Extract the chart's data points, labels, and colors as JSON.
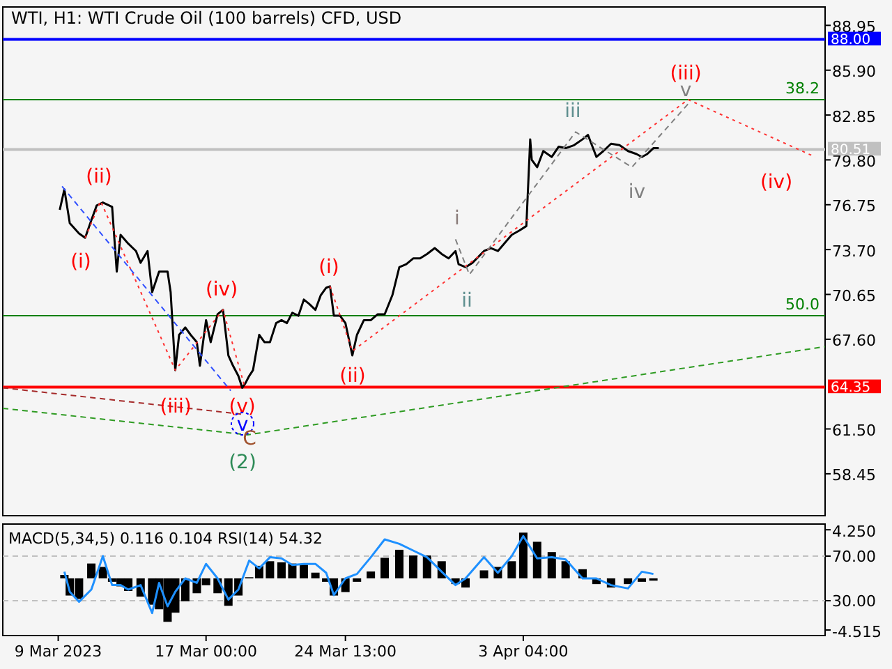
{
  "chart_data": [
    {
      "type": "line",
      "title": "WTI, H1:  WTI Crude Oil (100 barrels) CFD, USD",
      "tick_labels": "y",
      "xlim": [
        "2023-03-06T00:00",
        "2023-04-19T12:00"
      ],
      "ylim": [
        55.6,
        90.2
      ],
      "yticks": [
        88.95,
        {
          "value": 85.9,
          "label": "85.90"
        },
        82.85,
        {
          "value": 79.8,
          "label": "79.80"
        },
        76.75,
        {
          "value": 73.7,
          "label": "73.70"
        },
        70.65,
        {
          "value": 67.6,
          "label": "67.60"
        },
        {
          "value": 61.5,
          "label": "61.50"
        },
        58.45
      ],
      "series": [
        {
          "color": "#000000",
          "x": [
            "2023-03-09T02:00",
            "2023-03-09T08:00",
            "2023-03-09T15:00",
            "2023-03-10T03:00",
            "2023-03-10T11:00",
            "2023-03-10T19:00",
            "2023-03-11T02:00",
            "2023-03-11T10:00",
            "2023-03-11T22:00",
            "2023-03-12T04:00",
            "2023-03-12T09:00",
            "2023-03-12T19:00",
            "2023-03-13T05:00",
            "2023-03-13T11:00",
            "2023-03-13T20:00",
            "2023-03-14T02:00",
            "2023-03-14T11:00",
            "2023-03-14T22:00",
            "2023-03-15T02:00",
            "2023-03-15T08:00",
            "2023-03-15T13:00",
            "2023-03-15T21:00",
            "2023-03-16T04:00",
            "2023-03-16T12:00",
            "2023-03-16T16:00",
            "2023-03-17T00:00",
            "2023-03-17T06:00",
            "2023-03-17T15:00",
            "2023-03-17T22:00",
            "2023-03-18T05:00",
            "2023-03-18T11:00",
            "2023-03-18T18:00",
            "2023-03-18T23:00",
            "2023-03-19T03:00",
            "2023-03-19T08:00",
            "2023-03-19T13:00",
            "2023-03-19T21:00",
            "2023-03-20T04:00",
            "2023-03-20T11:00",
            "2023-03-20T19:00",
            "2023-03-21T02:00",
            "2023-03-21T09:00",
            "2023-03-21T16:00",
            "2023-03-22T00:00",
            "2023-03-22T07:00",
            "2023-03-22T14:00",
            "2023-03-22T22:00",
            "2023-03-23T05:00",
            "2023-03-23T12:00",
            "2023-03-23T17:00",
            "2023-03-23T22:00",
            "2023-03-24T06:00",
            "2023-03-24T13:00",
            "2023-03-24T22:00",
            "2023-03-25T04:00",
            "2023-03-25T13:00",
            "2023-03-25T22:00",
            "2023-03-26T07:00",
            "2023-03-26T16:00",
            "2023-03-27T02:00",
            "2023-03-27T11:00",
            "2023-03-27T20:00",
            "2023-03-28T05:00",
            "2023-03-28T14:00",
            "2023-03-28T23:00",
            "2023-03-29T09:00",
            "2023-03-29T18:00",
            "2023-03-30T03:00",
            "2023-03-30T12:00",
            "2023-03-30T16:00",
            "2023-03-31T01:00",
            "2023-03-31T10:00",
            "2023-04-01T01:00",
            "2023-04-01T10:00",
            "2023-04-01T19:00",
            "2023-04-02T13:00",
            "2023-04-02T23:00",
            "2023-04-03T08:00",
            "2023-04-03T13:00",
            "2023-04-03T15:00",
            "2023-04-03T22:00",
            "2023-04-04T06:00",
            "2023-04-04T17:00",
            "2023-04-05T02:00",
            "2023-04-05T11:00",
            "2023-04-05T22:00",
            "2023-04-06T09:00",
            "2023-04-06T16:00",
            "2023-04-07T03:00",
            "2023-04-07T12:00",
            "2023-04-07T22:00",
            "2023-04-08T09:00",
            "2023-04-08T20:00",
            "2023-04-09T07:00",
            "2023-04-09T14:00",
            "2023-04-09T21:00",
            "2023-04-10T05:00",
            "2023-04-10T12:00"
          ],
          "values": [
            76.4,
            77.8,
            75.5,
            74.8,
            74.5,
            75.7,
            76.7,
            76.9,
            76.6,
            72.2,
            74.7,
            74.1,
            73.6,
            72.8,
            73.6,
            70.8,
            72.2,
            72.2,
            70.8,
            65.5,
            67.9,
            68.4,
            67.9,
            67.4,
            65.8,
            68.9,
            67.4,
            69.3,
            69.6,
            66.5,
            65.8,
            65.1,
            64.3,
            64.6,
            65.1,
            65.5,
            67.9,
            67.4,
            67.4,
            68.7,
            68.9,
            68.7,
            69.4,
            69.2,
            70.3,
            70.0,
            69.6,
            70.6,
            71.1,
            71.2,
            69.2,
            69.2,
            68.7,
            66.5,
            67.9,
            68.9,
            68.9,
            69.3,
            69.3,
            70.6,
            72.5,
            72.7,
            73.1,
            73.1,
            73.4,
            73.8,
            73.4,
            73.1,
            73.6,
            72.7,
            72.5,
            72.8,
            73.6,
            73.8,
            73.6,
            74.7,
            75.0,
            75.3,
            81.2,
            79.8,
            79.3,
            80.4,
            80.0,
            80.7,
            80.6,
            80.8,
            81.2,
            81.5,
            80.0,
            80.4,
            80.9,
            80.8,
            80.4,
            80.2,
            80.0,
            80.2,
            80.6,
            80.6
          ]
        },
        {
          "color": "#ff3030",
          "line_style": "dotted",
          "x": [
            "2023-03-10T11:00",
            "2023-03-11T07:00",
            "2023-03-15T08:00",
            "2023-03-17T22:00",
            "2023-03-19T02:00"
          ],
          "values": [
            74.5,
            77.0,
            65.5,
            69.6,
            64.4
          ]
        },
        {
          "color": "#ff3030",
          "line_style": "dotted",
          "x": [
            "2023-03-23T17:00",
            "2023-03-24T22:00",
            "2023-04-12T02:00",
            "2023-04-18T23:00"
          ],
          "values": [
            71.2,
            66.8,
            83.9,
            80.0
          ]
        },
        {
          "color": "#3050ff",
          "line_style": "dashed",
          "x": [
            "2023-03-09T05:00",
            "2023-03-18T08:00"
          ],
          "values": [
            78.0,
            64.1
          ]
        },
        {
          "color": "#a52a2a",
          "line_style": "dashed",
          "x": [
            "2023-03-06T00:00",
            "2023-03-18T23:00"
          ],
          "values": [
            64.3,
            62.5
          ]
        },
        {
          "color": "#2e9b22",
          "line_style": "dashed",
          "x": [
            "2023-03-06T00:00",
            "2023-03-19T06:00",
            "2023-04-19T12:00"
          ],
          "values": [
            62.9,
            61.1,
            67.1
          ]
        },
        {
          "color": "#808080",
          "line_style": "dashed",
          "x": [
            "2023-03-30T12:00",
            "2023-03-31T06:00",
            "2023-04-06T00:00",
            "2023-04-09T01:00",
            "2023-04-12T02:00"
          ],
          "values": [
            74.4,
            72.0,
            81.7,
            79.3,
            83.6
          ]
        }
      ],
      "ref_lines": [
        {
          "axis": "y",
          "value": 88,
          "label": "88.00",
          "color": "#0000ff"
        },
        {
          "axis": "y",
          "value": 83.9,
          "color": "#008000"
        },
        {
          "axis": "y",
          "value": 80.51,
          "label": "80.51",
          "color": "#c0c0c0"
        },
        {
          "axis": "y",
          "value": 69.2,
          "color": "#008000"
        },
        {
          "axis": "y",
          "value": 64.35,
          "label": "64.35",
          "color": "#ff0000"
        }
      ],
      "annotations": [
        "(i)",
        "(ii)",
        "(iii)",
        "(iv)",
        {
          "text": "(v)",
          "x": "2023-03-18T23:00",
          "y": 64.3
        },
        "v",
        "C",
        "(2)",
        "(i)",
        "(ii)",
        "i",
        "ii",
        "iii",
        "iv",
        "(iii)",
        "v",
        "(iv)",
        "38.2",
        "50.0"
      ]
    },
    {
      "type": "bar",
      "title": "MACD(5,34,5) 0.116 0.104 RSI(14) 54.32",
      "xlim": [
        "2023-03-06T00:00",
        "2023-04-19T12:00"
      ],
      "ylim": [
        -5.0,
        4.75
      ],
      "y2lim": [
        -1.25,
        98.75
      ],
      "xticks": [
        {
          "value": "2023-03-09T00:00",
          "label": "9 Mar 2023"
        },
        {
          "value": "2023-03-17T00:00",
          "label": "17 Mar 00:00"
        },
        {
          "value": "2023-03-24T13:00",
          "label": "24 Mar 13:00"
        },
        {
          "value": "2023-04-03T04:00",
          "label": "3 Apr 04:00"
        }
      ],
      "yticks": [
        {
          "value": 4.25,
          "label": "4.250"
        },
        {
          "value": -4.515,
          "label": "-4.515"
        }
      ],
      "y2ticks": [
        {
          "value": 70,
          "label": "70.00"
        },
        {
          "value": 30,
          "label": "30.00"
        }
      ],
      "x": [
        "2023-03-09T08:00",
        "2023-03-09T15:00",
        "2023-03-10T03:00",
        "2023-03-10T19:00",
        "2023-03-11T10:00",
        "2023-03-11T22:00",
        "2023-03-12T09:00",
        "2023-03-12T19:00",
        "2023-03-13T11:00",
        "2023-03-14T02:00",
        "2023-03-14T11:00",
        "2023-03-14T22:00",
        "2023-03-15T08:00",
        "2023-03-15T21:00",
        "2023-03-16T12:00",
        "2023-03-17T00:00",
        "2023-03-17T15:00",
        "2023-03-18T05:00",
        "2023-03-18T18:00",
        "2023-03-19T08:00",
        "2023-03-19T21:00",
        "2023-03-20T11:00",
        "2023-03-21T02:00",
        "2023-03-21T16:00",
        "2023-03-22T07:00",
        "2023-03-22T22:00",
        "2023-03-23T12:00",
        "2023-03-23T22:00",
        "2023-03-24T13:00",
        "2023-03-25T04:00",
        "2023-03-25T22:00",
        "2023-03-26T16:00",
        "2023-03-27T11:00",
        "2023-03-28T05:00",
        "2023-03-28T23:00",
        "2023-03-29T18:00",
        "2023-03-30T12:00",
        "2023-03-31T01:00",
        "2023-04-01T01:00",
        "2023-04-01T19:00",
        "2023-04-02T13:00",
        "2023-04-03T04:00",
        "2023-04-03T22:00",
        "2023-04-04T17:00",
        "2023-04-05T11:00",
        "2023-04-06T09:00",
        "2023-04-07T03:00",
        "2023-04-07T22:00",
        "2023-04-08T20:00",
        "2023-04-09T14:00",
        "2023-04-10T05:00"
      ],
      "series": [
        {
          "color": "#000000",
          "values": [
            0.3,
            -1.5,
            -1.8,
            1.3,
            1.0,
            -0.3,
            -0.7,
            -1.1,
            -1.6,
            -2.3,
            -2.7,
            -3.8,
            -3.0,
            -2.0,
            -1.3,
            -0.6,
            -1.3,
            -2.4,
            -1.5,
            0.1,
            1.1,
            1.5,
            1.4,
            1.3,
            1.2,
            0.5,
            -0.3,
            -1.5,
            -1.2,
            -0.3,
            0.6,
            1.8,
            2.5,
            2.0,
            2.0,
            1.5,
            -0.5,
            -0.8,
            0.7,
            1.0,
            1.5,
            4.0,
            3.2,
            2.3,
            1.5,
            0.8,
            -0.5,
            -0.8,
            -0.5,
            -0.3,
            -0.2
          ]
        },
        {
          "type": "line",
          "axis": "y2",
          "color": "#1e90ff",
          "values": [
            56,
            38,
            29,
            40,
            70,
            44,
            44,
            40,
            44,
            19,
            46,
            25,
            38,
            50,
            46,
            63,
            50,
            31,
            40,
            66,
            59,
            69,
            68,
            62,
            63,
            63,
            55,
            35,
            50,
            54,
            69,
            85,
            81,
            75,
            69,
            56,
            44,
            50,
            69,
            55,
            70,
            88,
            68,
            69,
            67,
            50,
            50,
            44,
            41,
            56,
            54
          ]
        }
      ],
      "ref_lines": [
        {
          "axis": "y2",
          "value": 70,
          "color": "#c0c0c0",
          "line_style": "dashed"
        },
        {
          "axis": "y2",
          "value": 30,
          "color": "#c0c0c0",
          "line_style": "dashed"
        }
      ]
    }
  ]
}
